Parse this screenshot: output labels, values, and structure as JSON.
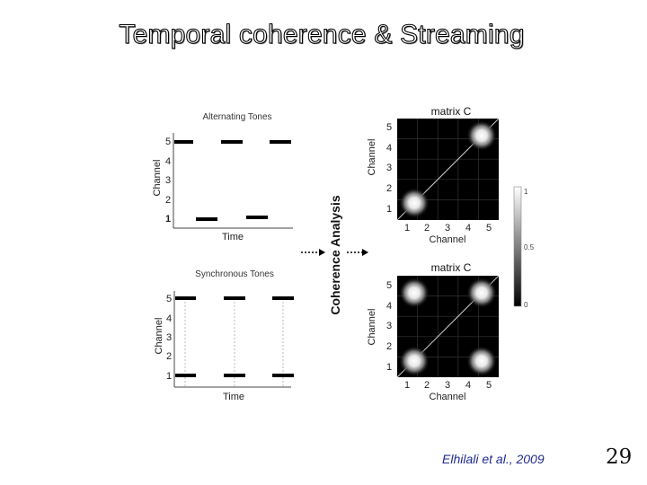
{
  "slide": {
    "title": "Temporal coherence & Streaming",
    "citation": "Elhilali et al., 2009",
    "page_number": "29"
  },
  "figure": {
    "alternating": {
      "title": "Alternating Tones",
      "ylabel": "Channel",
      "xlabel": "Time",
      "yticks": [
        "5",
        "4",
        "3",
        "2",
        "1"
      ]
    },
    "synchronous": {
      "title": "Synchronous Tones",
      "ylabel": "Channel",
      "xlabel": "Time",
      "yticks": [
        "5",
        "4",
        "3",
        "2",
        "1"
      ]
    },
    "analysis_label": "Coherence Analysis",
    "matrix_top": {
      "title": "matrix C",
      "ylabel": "Channel",
      "xlabel": "Channel",
      "yticks": [
        "5",
        "4",
        "3",
        "2",
        "1"
      ],
      "xticks": [
        "1",
        "2",
        "3",
        "4",
        "5"
      ]
    },
    "matrix_bottom": {
      "title": "matrix C",
      "ylabel": "Channel",
      "xlabel": "Channel",
      "yticks": [
        "5",
        "4",
        "3",
        "2",
        "1"
      ],
      "xticks": [
        "1",
        "2",
        "3",
        "4",
        "5"
      ]
    },
    "colorbar": {
      "ticks": [
        "1",
        "0.5",
        "0"
      ]
    }
  }
}
